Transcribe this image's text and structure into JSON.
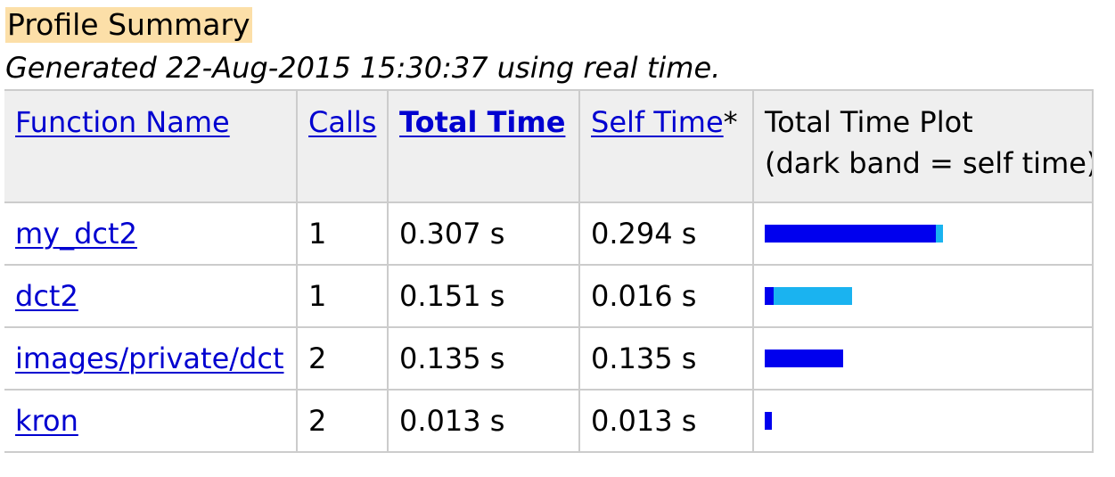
{
  "header": {
    "title": "Profile Summary",
    "subtitle": "Generated 22-Aug-2015 15:30:37 using real time."
  },
  "table": {
    "columns": {
      "function_name": "Function Name",
      "calls": "Calls",
      "total_time": "Total Time",
      "self_time": "Self Time",
      "self_time_marker": "*",
      "plot_line1": "Total Time Plot",
      "plot_line2": "(dark band = self time)"
    },
    "rows": [
      {
        "function": "my_dct2",
        "calls": "1",
        "total_time": "0.307 s",
        "self_time": "0.294 s",
        "total_seconds": 0.307,
        "self_seconds": 0.294
      },
      {
        "function": "dct2",
        "calls": "1",
        "total_time": "0.151 s",
        "self_time": "0.016 s",
        "total_seconds": 0.151,
        "self_seconds": 0.016
      },
      {
        "function": "images/private/dct",
        "calls": "2",
        "total_time": "0.135 s",
        "self_time": "0.135 s",
        "total_seconds": 0.135,
        "self_seconds": 0.135
      },
      {
        "function": "kron",
        "calls": "2",
        "total_time": "0.013 s",
        "self_time": "0.013 s",
        "total_seconds": 0.013,
        "self_seconds": 0.013
      }
    ]
  },
  "colors": {
    "link": "#0000d0",
    "self_band": "#0000ee",
    "total_band": "#1ab3f0",
    "title_highlight": "#fcdfa8",
    "header_bg": "#efefef"
  }
}
